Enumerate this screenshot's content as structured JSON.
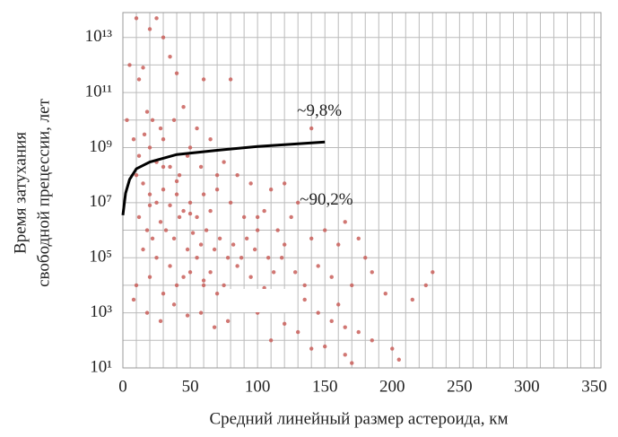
{
  "chart_data": {
    "type": "scatter",
    "xlabel": "Средний линейный размер астероида, км",
    "ylabel": [
      "Время затухания",
      "свободной прецессии, лет"
    ],
    "annotations": [
      {
        "text": "~9,8%",
        "x": 128,
        "y": 20000000000.0
      },
      {
        "text": "~90,2%",
        "x": 130,
        "y": 12000000.0
      }
    ],
    "xlim": [
      0,
      355
    ],
    "ylim": [
      10,
      80000000000000.0
    ],
    "ylog": true,
    "grid": true,
    "xticks": [
      0,
      50,
      100,
      150,
      200,
      250,
      300,
      350
    ],
    "xminorticks": [
      10,
      20,
      30,
      40,
      60,
      70,
      80,
      90,
      110,
      120,
      130,
      140,
      160,
      170,
      180,
      190,
      210,
      220,
      230,
      240,
      260,
      270,
      280,
      290,
      310,
      320,
      330,
      340
    ],
    "yticks": [
      {
        "value": 10,
        "label": "10¹"
      },
      {
        "value": 1000,
        "label": "10³"
      },
      {
        "value": 100000,
        "label": "10⁵"
      },
      {
        "value": 10000000,
        "label": "10⁷"
      },
      {
        "value": 1000000000,
        "label": "10⁹"
      },
      {
        "value": 100000000000,
        "label": "10¹¹"
      },
      {
        "value": 10000000000000,
        "label": "10¹³"
      }
    ],
    "yminorticks": [
      100,
      10000,
      1000000,
      100000000,
      10000000000,
      1000000000000
    ],
    "points": {
      "color": "#c95f5a",
      "x": [
        10,
        25,
        20,
        30,
        5,
        15,
        40,
        60,
        80,
        35,
        12,
        3,
        18,
        22,
        28,
        45,
        55,
        38,
        140,
        8,
        50,
        65,
        16,
        30,
        12,
        20,
        25,
        35,
        42,
        48,
        58,
        70,
        75,
        85,
        95,
        110,
        120,
        130,
        10,
        15,
        20,
        25,
        30,
        35,
        40,
        45,
        50,
        55,
        60,
        65,
        80,
        90,
        100,
        105,
        115,
        125,
        140,
        150,
        160,
        165,
        175,
        180,
        12,
        18,
        22,
        28,
        32,
        38,
        42,
        48,
        52,
        58,
        62,
        68,
        72,
        78,
        82,
        88,
        92,
        98,
        108,
        112,
        118,
        128,
        135,
        145,
        155,
        170,
        185,
        195,
        230,
        215,
        225,
        15,
        25,
        35,
        45,
        55,
        65,
        75,
        85,
        95,
        105,
        115,
        125,
        135,
        145,
        155,
        165,
        175,
        185,
        200,
        205,
        165,
        150,
        130,
        120,
        100,
        90,
        80,
        70,
        60,
        50,
        40,
        30,
        20,
        10,
        8,
        18,
        28,
        38,
        48,
        58,
        68,
        78,
        110,
        140,
        170,
        60,
        160,
        120,
        100,
        70,
        30,
        40,
        20,
        50
      ],
      "values": [
        50000000000000.0,
        50000000000000.0,
        20000000000000.0,
        10000000000000.0,
        1000000000000.0,
        800000000000.0,
        500000000000.0,
        300000000000.0,
        300000000000.0,
        2000000000000.0,
        300000000000.0,
        10000000000.0,
        20000000000.0,
        10000000000.0,
        5000000000.0,
        30000000000.0,
        5000000000.0,
        10000000000.0,
        5000000000.0,
        2000000000.0,
        1000000000.0,
        2000000000.0,
        3000000000.0,
        2000000000.0,
        500000000.0,
        1000000000.0,
        300000000.0,
        200000000.0,
        100000000.0,
        500000000.0,
        200000000.0,
        100000000.0,
        300000000.0,
        100000000.0,
        50000000.0,
        30000000.0,
        50000000.0,
        10000000.0,
        100000000.0,
        50000000.0,
        20000000.0,
        10000000.0,
        30000000.0,
        8000000.0,
        20000000.0,
        5000000.0,
        10000000.0,
        3000000.0,
        20000000.0,
        5000000.0,
        10000000.0,
        3000000.0,
        1000000.0,
        5000000.0,
        1000000.0,
        3000000.0,
        500000.0,
        1000000.0,
        300000.0,
        2000000.0,
        500000.0,
        100000.0,
        3000000.0,
        1000000.0,
        500000.0,
        2000000.0,
        1000000.0,
        500000.0,
        3000000.0,
        200000.0,
        800000.0,
        300000.0,
        1000000.0,
        200000.0,
        500000.0,
        100000.0,
        300000.0,
        100000.0,
        500000.0,
        200000.0,
        100000.0,
        30000.0,
        100000.0,
        30000.0,
        10000.0,
        50000.0,
        20000.0,
        10000.0,
        30000.0,
        5000.0,
        30000.0,
        3000.0,
        10000.0,
        200000.0,
        100000.0,
        50000.0,
        20000.0,
        100000.0,
        30000.0,
        10000.0,
        50000.0,
        20000.0,
        8000.0,
        5000.0,
        2000.0,
        3000.0,
        1000.0,
        500,
        300,
        200,
        100,
        50,
        20,
        30,
        60,
        200,
        400,
        1000.0,
        3000.0,
        2000.0,
        5000.0,
        10000.0,
        30000.0,
        10000.0,
        5000.0,
        20000.0,
        10000.0,
        3000.0,
        1000.0,
        500,
        2000.0,
        800,
        1000.0,
        300,
        500,
        100,
        50,
        15,
        15000.0,
        2000.0,
        300000.0,
        3000000.0,
        30000000.0,
        200000000.0,
        60000000.0,
        8000000.0,
        4000000.0
      ]
    },
    "curve": {
      "color": "#000000",
      "x": [
        0,
        2,
        5,
        10,
        20,
        40,
        70,
        100,
        150
      ],
      "values": [
        3500000.0,
        22000000.0,
        70000000.0,
        170000000.0,
        300000000.0,
        560000000.0,
        800000000.0,
        1100000000.0,
        1600000000.0
      ]
    }
  }
}
